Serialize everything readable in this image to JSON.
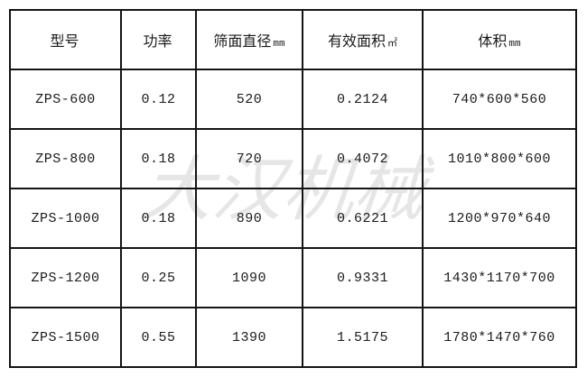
{
  "watermark": {
    "text": "大汉机械"
  },
  "table": {
    "columns": [
      {
        "label": "型号",
        "unit": ""
      },
      {
        "label": "功率",
        "unit": ""
      },
      {
        "label": "筛面直径",
        "unit": "mm"
      },
      {
        "label": "有效面积",
        "unit": "㎡"
      },
      {
        "label": "体积",
        "unit": "mm"
      }
    ],
    "rows": [
      [
        "ZPS-600",
        "0.12",
        "520",
        "0.2124",
        "740*600*560"
      ],
      [
        "ZPS-800",
        "0.18",
        "720",
        "0.4072",
        "1010*800*600"
      ],
      [
        "ZPS-1000",
        "0.18",
        "890",
        "0.6221",
        "1200*970*640"
      ],
      [
        "ZPS-1200",
        "0.25",
        "1090",
        "0.9331",
        "1430*1170*700"
      ],
      [
        "ZPS-1500",
        "0.55",
        "1390",
        "1.5175",
        "1780*1470*760"
      ]
    ]
  },
  "colors": {
    "border": "#141414",
    "text": "#1a1a1a",
    "watermark": "#e6e6e6",
    "background": "#ffffff"
  }
}
